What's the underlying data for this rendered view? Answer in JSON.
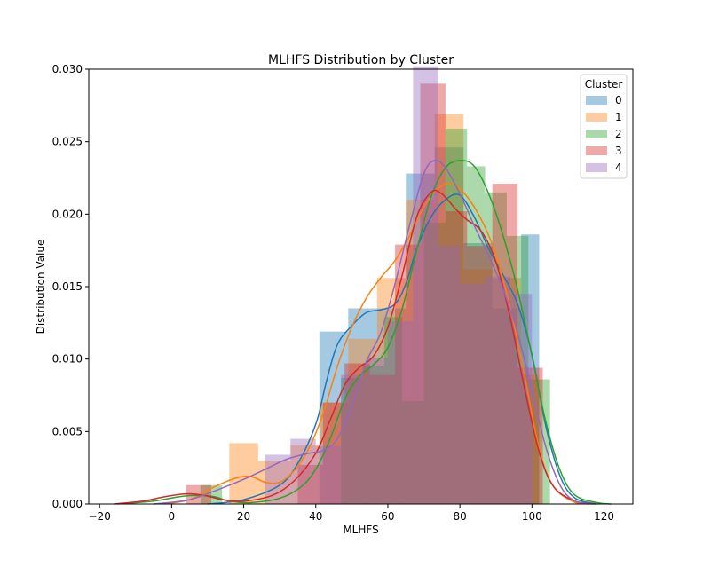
{
  "chart_data": {
    "type": "histogram-kde",
    "title": "MLHFS Distribution by Cluster",
    "xlabel": "MLHFS",
    "ylabel": "Distribution Value",
    "xlim": [
      -23,
      128
    ],
    "ylim": [
      0,
      0.03
    ],
    "xticks": [
      -20,
      0,
      20,
      40,
      60,
      80,
      100,
      120
    ],
    "xtick_labels": [
      "−20",
      "0",
      "20",
      "40",
      "60",
      "80",
      "100",
      "120"
    ],
    "yticks": [
      0.0,
      0.005,
      0.01,
      0.015,
      0.02,
      0.025,
      0.03
    ],
    "ytick_labels": [
      "0.000",
      "0.005",
      "0.010",
      "0.015",
      "0.020",
      "0.025",
      "0.030"
    ],
    "grid": false,
    "legend": {
      "title": "Cluster",
      "placement": "top-right"
    },
    "series": [
      {
        "name": "0",
        "color": "#1f77b4",
        "bins": [
          [
            41,
            49,
            0.0119
          ],
          [
            49,
            57,
            0.0135
          ],
          [
            57,
            65,
            0.0135
          ],
          [
            65,
            73,
            0.0228
          ],
          [
            73,
            81,
            0.0246
          ],
          [
            81,
            89,
            0.018
          ],
          [
            89,
            97,
            0.0135
          ],
          [
            97,
            102,
            0.0186
          ]
        ],
        "kde": [
          [
            10,
            0.0
          ],
          [
            20,
            0.0003
          ],
          [
            30,
            0.0013
          ],
          [
            35,
            0.0028
          ],
          [
            40,
            0.0055
          ],
          [
            43,
            0.0085
          ],
          [
            46,
            0.011
          ],
          [
            50,
            0.0123
          ],
          [
            54,
            0.0132
          ],
          [
            58,
            0.0134
          ],
          [
            62,
            0.0138
          ],
          [
            65,
            0.0152
          ],
          [
            68,
            0.0176
          ],
          [
            72,
            0.0198
          ],
          [
            76,
            0.021
          ],
          [
            80,
            0.0213
          ],
          [
            84,
            0.0198
          ],
          [
            88,
            0.0176
          ],
          [
            92,
            0.0158
          ],
          [
            96,
            0.0138
          ],
          [
            100,
            0.0103
          ],
          [
            104,
            0.0052
          ],
          [
            108,
            0.0018
          ],
          [
            112,
            0.0004
          ],
          [
            118,
            0.0
          ]
        ]
      },
      {
        "name": "1",
        "color": "#ff7f0e",
        "bins": [
          [
            16,
            24,
            0.0042
          ],
          [
            24,
            33,
            0.003
          ],
          [
            33,
            41,
            0.0041
          ],
          [
            41,
            49,
            0.007
          ],
          [
            49,
            57,
            0.0114
          ],
          [
            57,
            65,
            0.0156
          ],
          [
            65,
            73,
            0.021
          ],
          [
            73,
            81,
            0.0269
          ],
          [
            81,
            89,
            0.0162
          ],
          [
            89,
            97,
            0.0156
          ],
          [
            97,
            102,
            0.0089
          ]
        ],
        "kde": [
          [
            -2,
            0.0
          ],
          [
            5,
            0.0003
          ],
          [
            12,
            0.0012
          ],
          [
            18,
            0.0018
          ],
          [
            22,
            0.0019
          ],
          [
            26,
            0.0015
          ],
          [
            30,
            0.0015
          ],
          [
            34,
            0.0023
          ],
          [
            38,
            0.0038
          ],
          [
            42,
            0.0062
          ],
          [
            46,
            0.0095
          ],
          [
            50,
            0.0122
          ],
          [
            54,
            0.0142
          ],
          [
            58,
            0.0156
          ],
          [
            62,
            0.0168
          ],
          [
            66,
            0.0185
          ],
          [
            70,
            0.0205
          ],
          [
            74,
            0.0218
          ],
          [
            78,
            0.0221
          ],
          [
            82,
            0.0212
          ],
          [
            86,
            0.0196
          ],
          [
            90,
            0.0172
          ],
          [
            94,
            0.0135
          ],
          [
            98,
            0.0088
          ],
          [
            102,
            0.0038
          ],
          [
            106,
            0.0012
          ],
          [
            112,
            0.0001
          ],
          [
            116,
            0.0
          ]
        ]
      },
      {
        "name": "2",
        "color": "#2ca02c",
        "bins": [
          [
            8,
            14,
            0.0013
          ],
          [
            47,
            53,
            0.0087
          ],
          [
            53,
            59,
            0.0095
          ],
          [
            59,
            64,
            0.0129
          ],
          [
            64,
            70,
            0.0071
          ],
          [
            70,
            76,
            0.0194
          ],
          [
            76,
            82,
            0.0259
          ],
          [
            82,
            87,
            0.0233
          ],
          [
            87,
            93,
            0.0215
          ],
          [
            93,
            99,
            0.0185
          ],
          [
            99,
            105,
            0.0086
          ]
        ],
        "kde": [
          [
            -15,
            0.0
          ],
          [
            -5,
            0.0002
          ],
          [
            2,
            0.0005
          ],
          [
            7,
            0.0006
          ],
          [
            12,
            0.0005
          ],
          [
            16,
            0.0002
          ],
          [
            22,
            0.0001
          ],
          [
            30,
            0.0004
          ],
          [
            36,
            0.0012
          ],
          [
            40,
            0.0024
          ],
          [
            44,
            0.0045
          ],
          [
            48,
            0.0072
          ],
          [
            52,
            0.0088
          ],
          [
            56,
            0.0096
          ],
          [
            60,
            0.0108
          ],
          [
            64,
            0.0135
          ],
          [
            68,
            0.0175
          ],
          [
            72,
            0.0212
          ],
          [
            76,
            0.0232
          ],
          [
            80,
            0.0237
          ],
          [
            84,
            0.0233
          ],
          [
            88,
            0.0214
          ],
          [
            92,
            0.0185
          ],
          [
            96,
            0.0148
          ],
          [
            100,
            0.0102
          ],
          [
            104,
            0.0055
          ],
          [
            108,
            0.0022
          ],
          [
            112,
            0.0006
          ],
          [
            118,
            0.0001
          ],
          [
            122,
            0.0
          ]
        ]
      },
      {
        "name": "3",
        "color": "#d62728",
        "bins": [
          [
            4,
            11,
            0.0013
          ],
          [
            35,
            42,
            0.0027
          ],
          [
            42,
            48,
            0.007
          ],
          [
            48,
            55,
            0.0097
          ],
          [
            55,
            62,
            0.0089
          ],
          [
            62,
            69,
            0.0179
          ],
          [
            69,
            76,
            0.029
          ],
          [
            76,
            82,
            0.0202
          ],
          [
            82,
            89,
            0.0178
          ],
          [
            89,
            96,
            0.0221
          ],
          [
            96,
            103,
            0.0094
          ]
        ],
        "kde": [
          [
            -16,
            0.0
          ],
          [
            -8,
            0.0002
          ],
          [
            -2,
            0.0005
          ],
          [
            4,
            0.0007
          ],
          [
            9,
            0.0006
          ],
          [
            14,
            0.0003
          ],
          [
            20,
            0.0002
          ],
          [
            28,
            0.0006
          ],
          [
            34,
            0.0016
          ],
          [
            40,
            0.0035
          ],
          [
            44,
            0.0058
          ],
          [
            48,
            0.0082
          ],
          [
            52,
            0.0094
          ],
          [
            56,
            0.0102
          ],
          [
            60,
            0.0122
          ],
          [
            64,
            0.0158
          ],
          [
            68,
            0.0198
          ],
          [
            72,
            0.0215
          ],
          [
            75,
            0.0214
          ],
          [
            79,
            0.0203
          ],
          [
            82,
            0.0196
          ],
          [
            86,
            0.0188
          ],
          [
            90,
            0.0167
          ],
          [
            94,
            0.0128
          ],
          [
            98,
            0.0079
          ],
          [
            102,
            0.0036
          ],
          [
            106,
            0.0012
          ],
          [
            112,
            0.0002
          ],
          [
            118,
            0.0
          ]
        ]
      },
      {
        "name": "4",
        "color": "#9467bd",
        "bins": [
          [
            26,
            33,
            0.0034
          ],
          [
            33,
            40,
            0.0045
          ],
          [
            40,
            47,
            0.004
          ],
          [
            47,
            54,
            0.0089
          ],
          [
            54,
            60,
            0.0101
          ],
          [
            60,
            67,
            0.0126
          ],
          [
            67,
            74,
            0.0302
          ],
          [
            74,
            80,
            0.0178
          ],
          [
            80,
            87,
            0.0152
          ],
          [
            87,
            94,
            0.0157
          ],
          [
            94,
            100,
            0.0145
          ]
        ],
        "kde": [
          [
            -5,
            0.0
          ],
          [
            5,
            0.0003
          ],
          [
            14,
            0.0011
          ],
          [
            20,
            0.0017
          ],
          [
            26,
            0.0024
          ],
          [
            32,
            0.0031
          ],
          [
            38,
            0.0035
          ],
          [
            42,
            0.0037
          ],
          [
            46,
            0.0045
          ],
          [
            50,
            0.0068
          ],
          [
            54,
            0.0098
          ],
          [
            58,
            0.0118
          ],
          [
            62,
            0.0152
          ],
          [
            66,
            0.0192
          ],
          [
            70,
            0.0228
          ],
          [
            73,
            0.0237
          ],
          [
            76,
            0.0232
          ],
          [
            80,
            0.0214
          ],
          [
            84,
            0.0192
          ],
          [
            88,
            0.0171
          ],
          [
            92,
            0.0148
          ],
          [
            96,
            0.0118
          ],
          [
            100,
            0.0078
          ],
          [
            104,
            0.0038
          ],
          [
            108,
            0.0012
          ],
          [
            112,
            0.0002
          ],
          [
            117,
            0.0
          ]
        ]
      }
    ]
  }
}
